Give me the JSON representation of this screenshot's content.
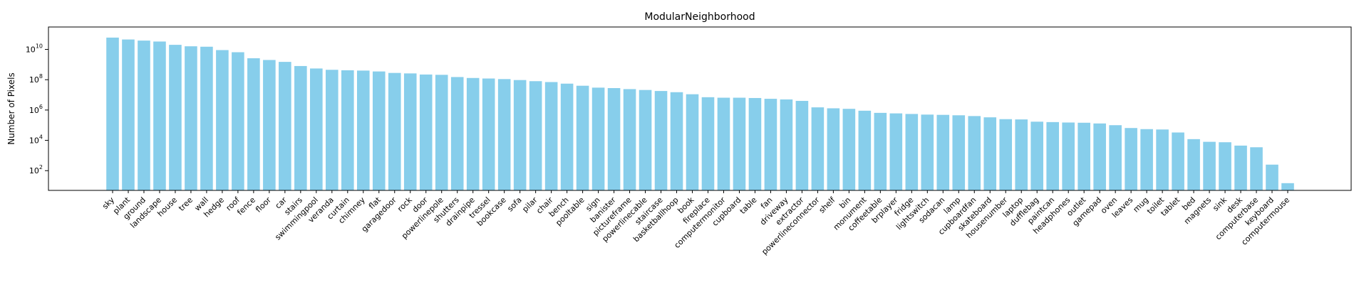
{
  "chart_data": {
    "type": "bar",
    "title": "ModularNeighborhood",
    "xlabel": "",
    "ylabel": "Number of Pixels",
    "yscale": "log",
    "ylim": [
      5,
      300000000000
    ],
    "yticks": [
      {
        "value": 100,
        "base": "10",
        "exp": "2"
      },
      {
        "value": 10000,
        "base": "10",
        "exp": "4"
      },
      {
        "value": 1000000,
        "base": "10",
        "exp": "6"
      },
      {
        "value": 100000000,
        "base": "10",
        "exp": "8"
      },
      {
        "value": 10000000000,
        "base": "10",
        "exp": "10"
      }
    ],
    "bar_color": "#87ceeb",
    "grid": false,
    "categories": [
      "sky",
      "plant",
      "ground",
      "landscape",
      "house",
      "tree",
      "wall",
      "hedge",
      "roof",
      "fence",
      "floor",
      "car",
      "stairs",
      "swimmingpool",
      "veranda",
      "curtain",
      "chimney",
      "flat",
      "garagedoor",
      "rock",
      "door",
      "powerlinepole",
      "shutters",
      "drainpipe",
      "tressel",
      "bookcase",
      "sofa",
      "pilar",
      "chair",
      "bench",
      "pooltable",
      "sign",
      "banister",
      "pictureframe",
      "powerlinecable",
      "staircase",
      "basketballhoop",
      "book",
      "fireplace",
      "computermonitor",
      "cupboard",
      "table",
      "fan",
      "driveway",
      "extractor",
      "powerlineconnector",
      "shelf",
      "bin",
      "monument",
      "coffeetable",
      "brplayer",
      "fridge",
      "lightswitch",
      "sodacan",
      "lamp",
      "cupboardfan",
      "skateboard",
      "housenumber",
      "laptop",
      "dufflebag",
      "paintcan",
      "headphones",
      "outlet",
      "gamepad",
      "oven",
      "leaves",
      "mug",
      "toilet",
      "tablet",
      "bed",
      "magnets",
      "sink",
      "desk",
      "computerbase",
      "keyboard",
      "computermouse"
    ],
    "values": [
      60000000000,
      45000000000,
      38000000000,
      33000000000,
      20000000000,
      16000000000,
      15000000000,
      9000000000,
      6500000000,
      2600000000,
      2000000000,
      1500000000,
      800000000,
      550000000,
      450000000,
      420000000,
      400000000,
      350000000,
      280000000,
      260000000,
      220000000,
      210000000,
      150000000,
      130000000,
      120000000,
      110000000,
      95000000,
      80000000,
      70000000,
      55000000,
      40000000,
      30000000,
      28000000,
      24000000,
      21000000,
      18000000,
      15000000,
      11000000,
      7000000,
      6500000,
      6500000,
      6200000,
      5500000,
      5000000,
      4000000,
      1500000,
      1300000,
      1200000,
      900000,
      650000,
      600000,
      550000,
      500000,
      480000,
      450000,
      400000,
      330000,
      250000,
      240000,
      170000,
      160000,
      150000,
      145000,
      130000,
      100000,
      65000,
      55000,
      52000,
      33000,
      12000,
      8000,
      7500,
      4500,
      3500,
      250,
      15
    ]
  }
}
